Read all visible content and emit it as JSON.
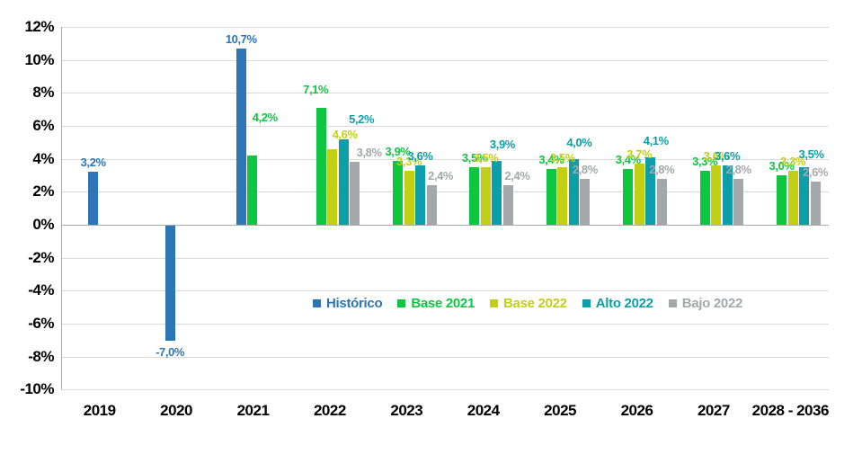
{
  "chart_data": {
    "type": "bar",
    "title": "",
    "categories": [
      "2019",
      "2020",
      "2021",
      "2022",
      "2023",
      "2024",
      "2025",
      "2026",
      "2027",
      "2028 - 2036"
    ],
    "series": [
      {
        "name": "Histórico",
        "color": "#2E75B6",
        "values": [
          3.2,
          -7.0,
          10.7,
          null,
          null,
          null,
          null,
          null,
          null,
          null
        ],
        "labels": [
          "3,2%",
          "-7,0%",
          "10,7%",
          null,
          null,
          null,
          null,
          null,
          null,
          null
        ]
      },
      {
        "name": "Base 2021",
        "color": "#0EC63F",
        "values": [
          null,
          null,
          4.2,
          7.1,
          3.9,
          3.5,
          3.4,
          3.4,
          3.3,
          3.0
        ],
        "labels": [
          null,
          null,
          "4,2%",
          "7,1%",
          "3,9%",
          "3,5%",
          "3,4%",
          "3,4%",
          "3,3%",
          "3,0%"
        ],
        "label_offsets": {
          "2": [
            14,
            -32
          ],
          "3": [
            -6,
            -10
          ]
        }
      },
      {
        "name": "Base 2022",
        "color": "#C3CF13",
        "values": [
          null,
          null,
          null,
          4.6,
          3.3,
          3.5,
          3.5,
          3.7,
          3.6,
          3.3
        ],
        "labels": [
          null,
          null,
          null,
          "4,6%",
          "3,3%",
          "3,5%",
          "3,5%",
          "3,7%",
          "3,6%",
          "3,3%"
        ],
        "label_offsets": {
          "3": [
            14,
            -6
          ]
        }
      },
      {
        "name": "Alto 2022",
        "color": "#0C9EA9",
        "values": [
          null,
          null,
          null,
          5.2,
          3.6,
          3.9,
          4.0,
          4.1,
          3.6,
          3.5
        ],
        "labels": [
          null,
          null,
          null,
          "5,2%",
          "3,6%",
          "3,9%",
          "4,0%",
          "4,1%",
          "3,6%",
          "3,5%"
        ],
        "label_offsets": {
          "3": [
            20,
            -12
          ],
          "5": [
            6,
            -8
          ],
          "6": [
            6,
            -8
          ],
          "7": [
            6,
            -8
          ],
          "9": [
            8,
            -4
          ]
        }
      },
      {
        "name": "Bajo 2022",
        "color": "#A5A8AB",
        "values": [
          null,
          null,
          null,
          3.8,
          2.4,
          2.4,
          2.8,
          2.8,
          2.8,
          2.6
        ],
        "labels": [
          null,
          null,
          null,
          "3,8%",
          "2,4%",
          "2,4%",
          "2,8%",
          "2,8%",
          "2,8%",
          "2,6%"
        ],
        "label_offsets": {
          "3": [
            16,
            0
          ],
          "4": [
            10,
            0
          ],
          "5": [
            10,
            0
          ]
        }
      }
    ],
    "y_ticks": [
      "12%",
      "10%",
      "8%",
      "6%",
      "4%",
      "2%",
      "0%",
      "-2%",
      "-4%",
      "-6%",
      "-8%",
      "-10%"
    ],
    "ylim": [
      -10,
      12
    ],
    "y_step": 2,
    "grid": true,
    "legend_position": "inside-bottom",
    "colors": {
      "gridline": "#D9D9D9",
      "axis": "#ABABAB",
      "tick_text": "#000000"
    }
  }
}
